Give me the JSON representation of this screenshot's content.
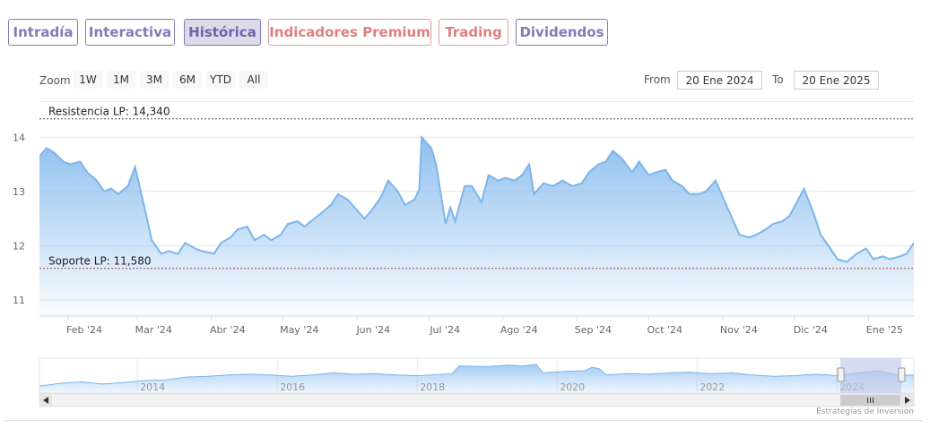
{
  "tabs": [
    {
      "label": "Intradía",
      "style": "purple",
      "active": false
    },
    {
      "label": "Interactiva",
      "style": "purple",
      "active": false
    },
    {
      "label": "Histórica",
      "style": "purple",
      "active": true
    },
    {
      "label": "Indicadores Premium",
      "style": "red",
      "active": false
    },
    {
      "label": "Trading",
      "style": "red",
      "active": false
    },
    {
      "label": "Dividendos",
      "style": "purple",
      "active": false
    }
  ],
  "toolbar": {
    "zoom_label": "Zoom",
    "zoom_buttons": [
      "1W",
      "1M",
      "3M",
      "6M",
      "YTD",
      "All"
    ],
    "from_label": "From",
    "from_value": "20 Ene 2024",
    "to_label": "To",
    "to_value": "20 Ene 2025"
  },
  "colors": {
    "tab_purple": "#8579b6",
    "tab_red": "#e07f7f",
    "series_line": "#7cb5ec",
    "resistance_line": "#2f5a2f",
    "support_line": "#a33b3b",
    "navigator_mask": "#bfc7e8"
  },
  "chart_data": {
    "type": "area",
    "x_tick_labels": [
      "Feb '24",
      "Mar '24",
      "Abr '24",
      "May '24",
      "Jun '24",
      "Jul '24",
      "Ago '24",
      "Sep '24",
      "Oct '24",
      "Nov '24",
      "Dic '24",
      "Ene '25"
    ],
    "y_tick_labels": [
      "11",
      "12",
      "13",
      "14"
    ],
    "ylim": [
      11,
      14
    ],
    "x_range": [
      "2024-01-20",
      "2025-01-20"
    ],
    "grid": true,
    "series": [
      {
        "values": [
          [
            "2024-01-20",
            13.65
          ],
          [
            "2024-01-23",
            13.8
          ],
          [
            "2024-01-26",
            13.72
          ],
          [
            "2024-01-30",
            13.55
          ],
          [
            "2024-02-02",
            13.5
          ],
          [
            "2024-02-06",
            13.55
          ],
          [
            "2024-02-09",
            13.35
          ],
          [
            "2024-02-13",
            13.2
          ],
          [
            "2024-02-16",
            13.0
          ],
          [
            "2024-02-19",
            13.05
          ],
          [
            "2024-02-22",
            12.95
          ],
          [
            "2024-02-26",
            13.1
          ],
          [
            "2024-02-29",
            13.45
          ],
          [
            "2024-03-04",
            12.7
          ],
          [
            "2024-03-07",
            12.1
          ],
          [
            "2024-03-11",
            11.85
          ],
          [
            "2024-03-14",
            11.9
          ],
          [
            "2024-03-18",
            11.85
          ],
          [
            "2024-03-21",
            12.05
          ],
          [
            "2024-03-25",
            11.95
          ],
          [
            "2024-03-28",
            11.9
          ],
          [
            "2024-04-02",
            11.85
          ],
          [
            "2024-04-05",
            12.05
          ],
          [
            "2024-04-09",
            12.15
          ],
          [
            "2024-04-12",
            12.3
          ],
          [
            "2024-04-16",
            12.35
          ],
          [
            "2024-04-19",
            12.1
          ],
          [
            "2024-04-23",
            12.2
          ],
          [
            "2024-04-26",
            12.1
          ],
          [
            "2024-04-30",
            12.2
          ],
          [
            "2024-05-03",
            12.4
          ],
          [
            "2024-05-07",
            12.45
          ],
          [
            "2024-05-10",
            12.35
          ],
          [
            "2024-05-14",
            12.5
          ],
          [
            "2024-05-17",
            12.6
          ],
          [
            "2024-05-21",
            12.75
          ],
          [
            "2024-05-24",
            12.95
          ],
          [
            "2024-05-28",
            12.85
          ],
          [
            "2024-05-31",
            12.7
          ],
          [
            "2024-06-04",
            12.5
          ],
          [
            "2024-06-07",
            12.65
          ],
          [
            "2024-06-11",
            12.9
          ],
          [
            "2024-06-14",
            13.2
          ],
          [
            "2024-06-18",
            13.0
          ],
          [
            "2024-06-21",
            12.75
          ],
          [
            "2024-06-25",
            12.85
          ],
          [
            "2024-06-27",
            13.05
          ],
          [
            "2024-06-28",
            14.0
          ],
          [
            "2024-07-02",
            13.8
          ],
          [
            "2024-07-04",
            13.5
          ],
          [
            "2024-07-08",
            12.4
          ],
          [
            "2024-07-10",
            12.7
          ],
          [
            "2024-07-12",
            12.45
          ],
          [
            "2024-07-16",
            13.1
          ],
          [
            "2024-07-19",
            13.1
          ],
          [
            "2024-07-23",
            12.8
          ],
          [
            "2024-07-26",
            13.3
          ],
          [
            "2024-07-30",
            13.2
          ],
          [
            "2024-08-02",
            13.25
          ],
          [
            "2024-08-06",
            13.2
          ],
          [
            "2024-08-09",
            13.3
          ],
          [
            "2024-08-12",
            13.5
          ],
          [
            "2024-08-14",
            12.95
          ],
          [
            "2024-08-18",
            13.15
          ],
          [
            "2024-08-22",
            13.1
          ],
          [
            "2024-08-26",
            13.2
          ],
          [
            "2024-08-30",
            13.1
          ],
          [
            "2024-09-03",
            13.15
          ],
          [
            "2024-09-06",
            13.35
          ],
          [
            "2024-09-10",
            13.5
          ],
          [
            "2024-09-13",
            13.55
          ],
          [
            "2024-09-16",
            13.75
          ],
          [
            "2024-09-20",
            13.6
          ],
          [
            "2024-09-24",
            13.35
          ],
          [
            "2024-09-27",
            13.55
          ],
          [
            "2024-10-01",
            13.3
          ],
          [
            "2024-10-04",
            13.35
          ],
          [
            "2024-10-08",
            13.4
          ],
          [
            "2024-10-11",
            13.2
          ],
          [
            "2024-10-15",
            13.1
          ],
          [
            "2024-10-18",
            12.95
          ],
          [
            "2024-10-22",
            12.95
          ],
          [
            "2024-10-25",
            13.0
          ],
          [
            "2024-10-29",
            13.2
          ],
          [
            "2024-11-01",
            12.9
          ],
          [
            "2024-11-05",
            12.5
          ],
          [
            "2024-11-08",
            12.2
          ],
          [
            "2024-11-12",
            12.15
          ],
          [
            "2024-11-15",
            12.2
          ],
          [
            "2024-11-19",
            12.3
          ],
          [
            "2024-11-22",
            12.4
          ],
          [
            "2024-11-26",
            12.45
          ],
          [
            "2024-11-29",
            12.55
          ],
          [
            "2024-12-02",
            12.8
          ],
          [
            "2024-12-05",
            13.05
          ],
          [
            "2024-12-09",
            12.6
          ],
          [
            "2024-12-12",
            12.2
          ],
          [
            "2024-12-16",
            11.95
          ],
          [
            "2024-12-19",
            11.75
          ],
          [
            "2024-12-23",
            11.7
          ],
          [
            "2024-12-27",
            11.85
          ],
          [
            "2024-12-31",
            11.95
          ],
          [
            "2025-01-03",
            11.75
          ],
          [
            "2025-01-07",
            11.8
          ],
          [
            "2025-01-10",
            11.75
          ],
          [
            "2025-01-14",
            11.8
          ],
          [
            "2025-01-17",
            11.85
          ],
          [
            "2025-01-20",
            12.05
          ]
        ]
      }
    ],
    "annotations": [
      {
        "label": "Resistencia LP: 14,340",
        "y": 14.34,
        "line": "dashed"
      },
      {
        "label": "Soporte LP: 11,580",
        "y": 11.58,
        "line": "dashed"
      }
    ],
    "navigator": {
      "year_labels": [
        "2014",
        "2016",
        "2018",
        "2020",
        "2022",
        "2024"
      ],
      "year_range": [
        2012.6,
        2025.1
      ],
      "selected_range": [
        2024.05,
        2025.05
      ],
      "values": [
        [
          2012.6,
          11.0
        ],
        [
          2012.9,
          11.4
        ],
        [
          2013.2,
          11.6
        ],
        [
          2013.5,
          11.3
        ],
        [
          2013.8,
          11.5
        ],
        [
          2014.1,
          11.8
        ],
        [
          2014.4,
          11.9
        ],
        [
          2014.7,
          12.3
        ],
        [
          2015.0,
          12.4
        ],
        [
          2015.3,
          12.6
        ],
        [
          2015.6,
          12.7
        ],
        [
          2015.9,
          12.6
        ],
        [
          2016.2,
          12.4
        ],
        [
          2016.5,
          12.6
        ],
        [
          2016.8,
          12.9
        ],
        [
          2017.1,
          12.7
        ],
        [
          2017.4,
          12.8
        ],
        [
          2017.7,
          12.6
        ],
        [
          2018.0,
          12.5
        ],
        [
          2018.2,
          12.6
        ],
        [
          2018.5,
          12.8
        ],
        [
          2018.6,
          13.9
        ],
        [
          2019.0,
          13.8
        ],
        [
          2019.3,
          14.0
        ],
        [
          2019.5,
          13.9
        ],
        [
          2019.7,
          14.1
        ],
        [
          2019.8,
          12.9
        ],
        [
          2020.1,
          13.1
        ],
        [
          2020.4,
          13.2
        ],
        [
          2020.5,
          13.7
        ],
        [
          2020.6,
          13.5
        ],
        [
          2020.7,
          12.6
        ],
        [
          2021.0,
          12.8
        ],
        [
          2021.3,
          12.7
        ],
        [
          2021.6,
          12.9
        ],
        [
          2021.9,
          13.0
        ],
        [
          2022.2,
          12.8
        ],
        [
          2022.5,
          12.9
        ],
        [
          2022.8,
          12.6
        ],
        [
          2023.1,
          12.4
        ],
        [
          2023.4,
          12.5
        ],
        [
          2023.7,
          12.7
        ],
        [
          2024.0,
          12.5
        ],
        [
          2024.3,
          12.9
        ],
        [
          2024.6,
          13.2
        ],
        [
          2024.9,
          12.5
        ],
        [
          2025.1,
          12.6
        ]
      ]
    }
  },
  "credits": "Estrategias de Inversión"
}
